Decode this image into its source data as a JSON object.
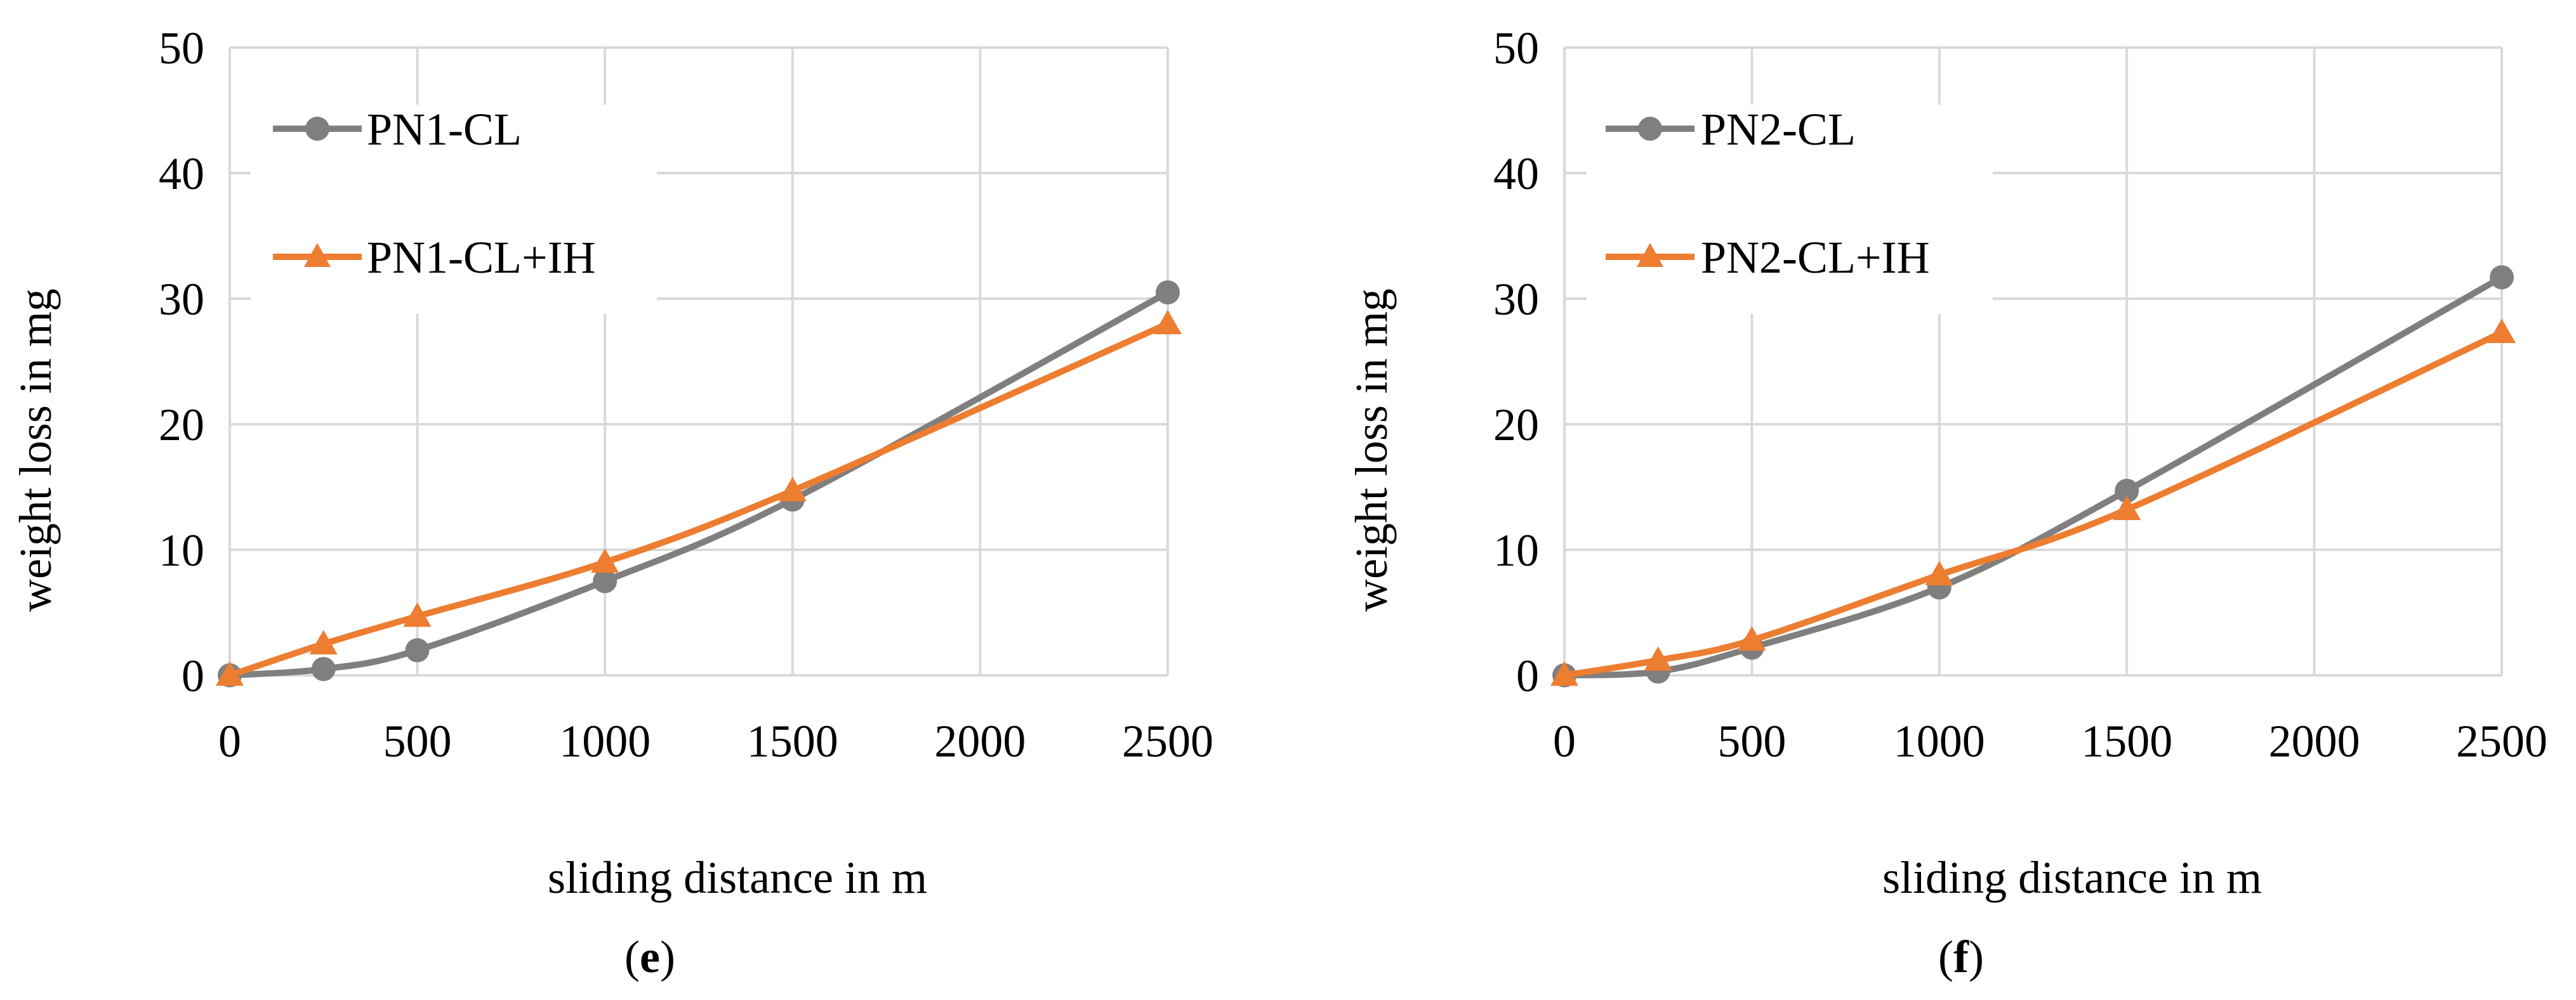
{
  "figure": {
    "colors": {
      "grid": "#d9d9d9",
      "text": "#000000",
      "background": "#ffffff"
    }
  },
  "chart_data": [
    {
      "type": "line",
      "panel_label": {
        "open": "(",
        "letter": "e",
        "close": ")"
      },
      "title": "",
      "xlabel": "sliding distance in m",
      "ylabel": "weight loss in mg",
      "xlim": [
        0,
        2500
      ],
      "ylim": [
        0,
        50
      ],
      "xticks": [
        0,
        500,
        1000,
        1500,
        2000,
        2500
      ],
      "yticks": [
        0,
        10,
        20,
        30,
        40,
        50
      ],
      "grid": true,
      "legend_position": "top-left",
      "series": [
        {
          "name": "PN1-CL",
          "color": "#7f7f7f",
          "marker": "circle",
          "x": [
            0,
            250,
            500,
            1000,
            1500,
            2500
          ],
          "y": [
            0,
            0.5,
            2,
            7.5,
            14,
            30.5
          ]
        },
        {
          "name": "PN1-CL+IH",
          "color": "#ed7d31",
          "marker": "triangle",
          "x": [
            0,
            250,
            500,
            1000,
            1500,
            2500
          ],
          "y": [
            0,
            2.5,
            4.7,
            9,
            14.7,
            28
          ]
        }
      ]
    },
    {
      "type": "line",
      "panel_label": {
        "open": "(",
        "letter": "f",
        "close": ")"
      },
      "title": "",
      "xlabel": "sliding distance in m",
      "ylabel": "weight loss in mg",
      "xlim": [
        0,
        2500
      ],
      "ylim": [
        0,
        50
      ],
      "xticks": [
        0,
        500,
        1000,
        1500,
        2000,
        2500
      ],
      "yticks": [
        0,
        10,
        20,
        30,
        40,
        50
      ],
      "grid": true,
      "legend_position": "top-left",
      "series": [
        {
          "name": "PN2-CL",
          "color": "#7f7f7f",
          "marker": "circle",
          "x": [
            0,
            250,
            500,
            1000,
            1500,
            2500
          ],
          "y": [
            0,
            0.3,
            2.2,
            7,
            14.7,
            31.7
          ]
        },
        {
          "name": "PN2-CL+IH",
          "color": "#ed7d31",
          "marker": "triangle",
          "x": [
            0,
            250,
            500,
            1000,
            1500,
            2500
          ],
          "y": [
            0,
            1.2,
            2.8,
            8,
            13.2,
            27.3
          ]
        }
      ]
    }
  ]
}
